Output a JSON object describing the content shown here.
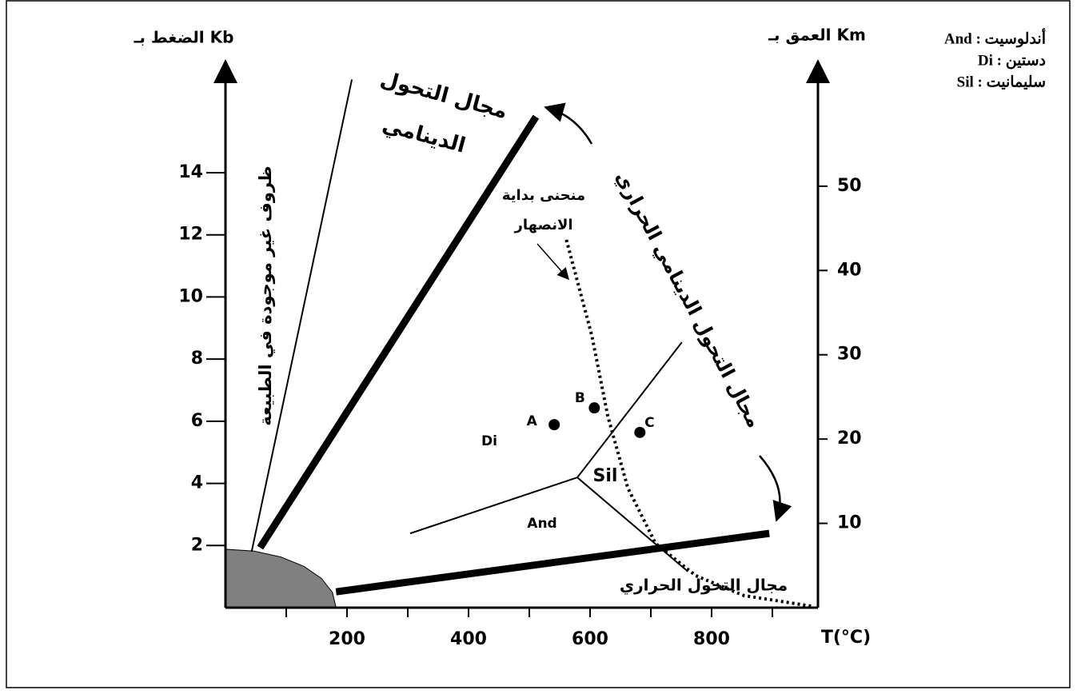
{
  "chart_data": {
    "type": "phase",
    "y_label": "الضغط بـ Kb",
    "y2_label": "العمق بـ Km",
    "x_label": "T(°C)",
    "legend": [
      "And : أندلوسيت",
      "Di : دستين",
      "Sil : سليمانيت"
    ],
    "xlim": [
      0,
      975
    ],
    "xticks": [
      200,
      400,
      600,
      800
    ],
    "xminor": [
      100,
      300,
      500,
      700,
      900
    ],
    "ylim": [
      0,
      17.5
    ],
    "yticks": [
      2,
      4,
      6,
      8,
      10,
      12,
      14
    ],
    "y2lim": [
      0,
      64.5
    ],
    "y2ticks": [
      10,
      20,
      30,
      40,
      50
    ],
    "area": {
      "x": [
        0,
        0,
        47,
        91,
        129,
        158,
        176,
        182
      ],
      "y": [
        0,
        1.88,
        1.82,
        1.63,
        1.33,
        0.94,
        0.49,
        0
      ],
      "color": "#808080"
    },
    "lines": [
      {
        "style": "thin",
        "x": [
          43,
          208
        ],
        "y": [
          1.8,
          17.0
        ]
      },
      {
        "style": "thick",
        "x": [
          57,
          511
        ],
        "y": [
          1.93,
          15.8
        ]
      },
      {
        "style": "thick",
        "x": [
          182,
          895
        ],
        "y": [
          0.51,
          2.39
        ]
      },
      {
        "style": "thin",
        "x": [
          304,
          579,
          751
        ],
        "y": [
          2.39,
          4.19,
          8.54
        ]
      },
      {
        "style": "thin",
        "x": [
          579,
          761
        ],
        "y": [
          4.19,
          1.16
        ]
      },
      {
        "style": "dotted",
        "x": [
          561,
          603,
          629,
          662,
          708,
          774,
          853,
          964
        ],
        "y": [
          11.84,
          8.75,
          6.18,
          3.86,
          2.06,
          1.03,
          0.39,
          0.05
        ]
      }
    ],
    "points": {
      "labels": [
        "A",
        "B",
        "C"
      ],
      "x": [
        541,
        607,
        682
      ],
      "y": [
        5.89,
        6.43,
        5.64
      ]
    },
    "regions": [
      "Di",
      "And",
      "Sil"
    ],
    "annotations": [
      "ظروف غير موجودة في الطبيعة",
      "مجال التحول",
      "الدينامي",
      "مجال التحول الدينامي الحراري",
      "منحنى بداية",
      "الانصهار",
      "مجال التحول الحراري"
    ]
  }
}
